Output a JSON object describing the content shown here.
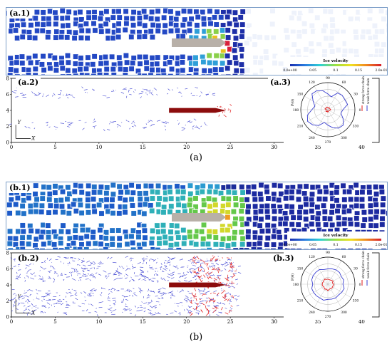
{
  "panel_a": {
    "caption": "(a)",
    "ice_label": "(a.1)",
    "chain_label": "(a.2)",
    "polar_label": "(a.3)",
    "polar_legend": [
      "strong force chain",
      "weak force chain"
    ]
  },
  "panel_b": {
    "caption": "(b)",
    "ice_label": "(b.1)",
    "chain_label": "(b.2)",
    "polar_label": "(b.3)",
    "polar_legend": [
      "strong force chain",
      "weak force chain"
    ]
  },
  "colorbar": {
    "title": "Ice velocity",
    "ticks": [
      "0.0e+00",
      "0.05",
      "0.1",
      "0.15",
      "2.0e-01"
    ],
    "colors": [
      "#1a2fb0",
      "#2a7de0",
      "#2fd2d2",
      "#9ce040",
      "#f0e020",
      "#f08a20",
      "#d81e2a"
    ]
  },
  "axes": {
    "x_ticks": [
      "0",
      "5",
      "10",
      "15",
      "20",
      "25",
      "30",
      "35",
      "40"
    ],
    "y_ticks": [
      "0",
      "2",
      "4",
      "6",
      "8"
    ],
    "axis_x_letter": "X",
    "axis_y_letter": "Y"
  },
  "polar": {
    "angle_labels": [
      "90",
      "60",
      "30",
      "0",
      "330",
      "300",
      "270",
      "240",
      "210",
      "180",
      "150",
      "120"
    ],
    "radial_axis_label": "P(θ)",
    "radial_ticks": [
      "0.12",
      "0.09",
      "0.06",
      "0.03"
    ]
  },
  "colors": {
    "weak_chain": "#3a3fd0",
    "strong_chain": "#e01818",
    "ship": "#b8b0a8",
    "ship_hull_chain": "#8c0c0c",
    "ice_edge": "#ffffff"
  }
}
